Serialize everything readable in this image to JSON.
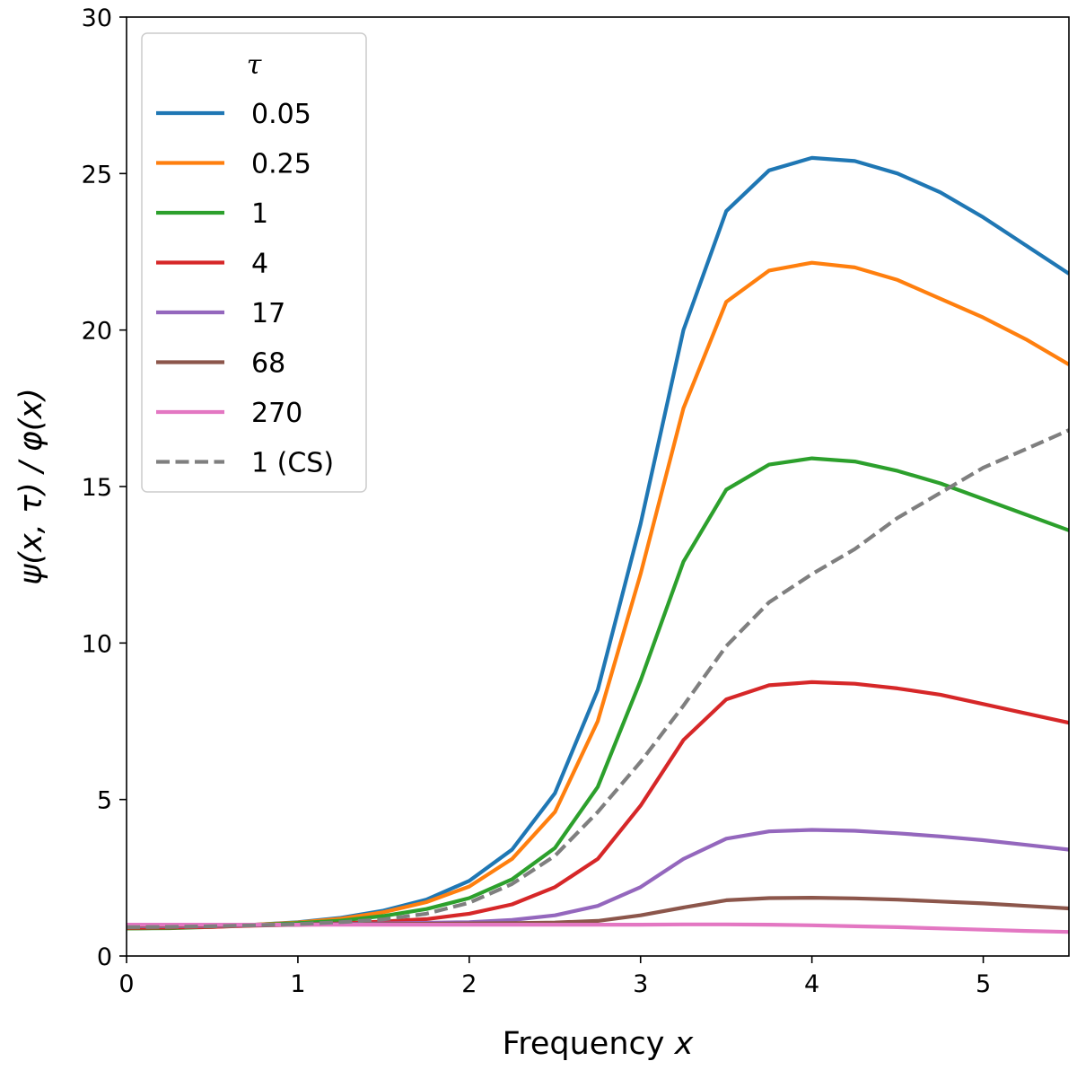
{
  "chart_data": {
    "type": "line",
    "title": "",
    "xlabel": "Frequency x",
    "xlabel_main": "Frequency ",
    "xlabel_var": "x",
    "ylabel": "ψ(x, τ) / φ(x)",
    "xlim": [
      0,
      5.5
    ],
    "ylim": [
      0,
      30
    ],
    "xticks": [
      0,
      1,
      2,
      3,
      4,
      5
    ],
    "yticks": [
      0,
      5,
      10,
      15,
      20,
      25,
      30
    ],
    "xtick_labels": [
      "0",
      "1",
      "2",
      "3",
      "4",
      "5"
    ],
    "ytick_labels": [
      "0",
      "5",
      "10",
      "15",
      "20",
      "25",
      "30"
    ],
    "legend_title": "τ",
    "legend_position": "top-left",
    "x": [
      0,
      0.25,
      0.5,
      0.75,
      1.0,
      1.25,
      1.5,
      1.75,
      2.0,
      2.25,
      2.5,
      2.75,
      3.0,
      3.25,
      3.5,
      3.75,
      4.0,
      4.25,
      4.5,
      4.75,
      5.0,
      5.25,
      5.5
    ],
    "series": [
      {
        "name": "0.05",
        "color": "#1f77b4",
        "dash": "solid",
        "values": [
          0.88,
          0.9,
          0.94,
          1.0,
          1.08,
          1.22,
          1.45,
          1.8,
          2.4,
          3.4,
          5.2,
          8.5,
          13.8,
          20.0,
          23.8,
          25.1,
          25.5,
          25.4,
          25.0,
          24.4,
          23.6,
          22.7,
          21.8
        ]
      },
      {
        "name": "0.25",
        "color": "#ff7f0e",
        "dash": "solid",
        "values": [
          0.88,
          0.9,
          0.94,
          1.0,
          1.07,
          1.19,
          1.4,
          1.72,
          2.22,
          3.1,
          4.6,
          7.5,
          12.2,
          17.5,
          20.9,
          21.9,
          22.15,
          22.0,
          21.6,
          21.0,
          20.4,
          19.7,
          18.9
        ]
      },
      {
        "name": "1",
        "color": "#2ca02c",
        "dash": "solid",
        "values": [
          0.88,
          0.89,
          0.93,
          0.99,
          1.05,
          1.13,
          1.28,
          1.5,
          1.85,
          2.45,
          3.45,
          5.4,
          8.8,
          12.6,
          14.9,
          15.7,
          15.9,
          15.8,
          15.5,
          15.1,
          14.6,
          14.1,
          13.6
        ]
      },
      {
        "name": "4",
        "color": "#d62728",
        "dash": "solid",
        "values": [
          0.9,
          0.91,
          0.93,
          0.97,
          1.0,
          1.04,
          1.1,
          1.18,
          1.35,
          1.65,
          2.2,
          3.1,
          4.8,
          6.9,
          8.2,
          8.65,
          8.75,
          8.7,
          8.55,
          8.35,
          8.05,
          7.75,
          7.45
        ]
      },
      {
        "name": "17",
        "color": "#9467bd",
        "dash": "solid",
        "values": [
          0.95,
          0.95,
          0.96,
          0.98,
          1.0,
          1.02,
          1.04,
          1.06,
          1.08,
          1.15,
          1.3,
          1.6,
          2.2,
          3.1,
          3.75,
          3.98,
          4.03,
          4.0,
          3.92,
          3.82,
          3.7,
          3.55,
          3.4
        ]
      },
      {
        "name": "68",
        "color": "#8c564b",
        "dash": "solid",
        "values": [
          0.97,
          0.97,
          0.98,
          0.99,
          1.0,
          1.01,
          1.02,
          1.03,
          1.04,
          1.05,
          1.07,
          1.12,
          1.3,
          1.55,
          1.78,
          1.85,
          1.86,
          1.84,
          1.8,
          1.74,
          1.68,
          1.6,
          1.52
        ]
      },
      {
        "name": "270",
        "color": "#e377c2",
        "dash": "solid",
        "values": [
          1.0,
          1.0,
          1.0,
          1.0,
          1.0,
          1.0,
          1.0,
          1.0,
          1.0,
          1.0,
          1.0,
          1.0,
          1.0,
          1.01,
          1.01,
          1.0,
          0.98,
          0.95,
          0.92,
          0.88,
          0.84,
          0.8,
          0.77
        ]
      },
      {
        "name": "1 (CS)",
        "color": "#7f7f7f",
        "dash": "dashed",
        "values": [
          0.92,
          0.93,
          0.95,
          0.98,
          1.02,
          1.08,
          1.17,
          1.35,
          1.7,
          2.3,
          3.2,
          4.6,
          6.2,
          8.0,
          9.9,
          11.3,
          12.2,
          13.0,
          14.0,
          14.8,
          15.6,
          16.2,
          16.8
        ]
      }
    ]
  }
}
